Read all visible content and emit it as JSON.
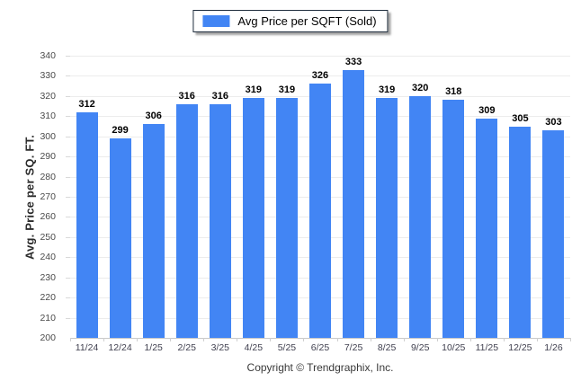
{
  "legend": {
    "label": "Avg Price per SQFT (Sold)",
    "swatch_color": "#4285f4"
  },
  "chart_data": {
    "type": "bar",
    "title": "Avg Price per SQFT (Sold)",
    "categories": [
      "11/24",
      "12/24",
      "1/25",
      "2/25",
      "3/25",
      "4/25",
      "5/25",
      "6/25",
      "7/25",
      "8/25",
      "9/25",
      "10/25",
      "11/25",
      "12/25",
      "1/26"
    ],
    "values": [
      312,
      299,
      306,
      316,
      316,
      319,
      319,
      326,
      333,
      319,
      320,
      318,
      309,
      305,
      303
    ],
    "xlabel": "",
    "ylabel": "Avg. Price per SQ. FT.",
    "ylim": [
      200,
      340
    ],
    "ytick_step": 10,
    "grid": true,
    "legend_position": "top-center",
    "bar_color": "#4285f4",
    "gridline_color": "#ececec"
  },
  "footer": {
    "copyright": "Copyright © Trendgraphix, Inc."
  }
}
